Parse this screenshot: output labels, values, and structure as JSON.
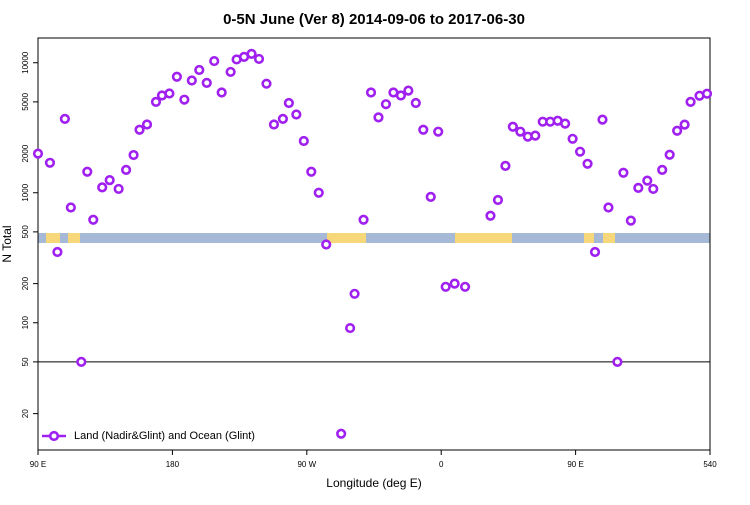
{
  "chart_data": {
    "type": "scatter",
    "title": "0-5N June (Ver 8)   2014-09-06 to 2017-06-30",
    "xlabel": "Longitude (deg E)",
    "ylabel": "N Total",
    "log_y": true,
    "legend": "lower left",
    "reference_line": 50,
    "xlim": [
      90,
      540
    ],
    "xticks": [
      {
        "value": 90,
        "label": "90 E"
      },
      180,
      {
        "value": 270,
        "label": "90 W"
      },
      {
        "value": 360,
        "label": "0"
      },
      {
        "value": 450,
        "label": "90 E"
      },
      540
    ],
    "ylim": [
      10.5,
      15500
    ],
    "yticks": [
      20,
      50,
      100,
      200,
      500,
      1000,
      2000,
      5000,
      10000
    ],
    "series": [
      {
        "name": "Land (Nadir&Glint) and Ocean (Glint)",
        "color": "#a020f0",
        "x": [
          90,
          98,
          103,
          108,
          112,
          119,
          123,
          127,
          133,
          138,
          144,
          149,
          154,
          158,
          163,
          169,
          173,
          178,
          183,
          188,
          193,
          198,
          203,
          208,
          213,
          219,
          223,
          228,
          233,
          238,
          243,
          248,
          254,
          258,
          263,
          268,
          273,
          278,
          283,
          293,
          299,
          302,
          308,
          313,
          318,
          323,
          328,
          333,
          338,
          343,
          348,
          353,
          358,
          363,
          369,
          376,
          393,
          398,
          403,
          408,
          413,
          418,
          423,
          428,
          433,
          438,
          443,
          448,
          453,
          458,
          463,
          468,
          472,
          478,
          482,
          487,
          492,
          498,
          502,
          508,
          513,
          518,
          523,
          527,
          533,
          538
        ],
        "values": [
          2000,
          1700,
          350,
          3700,
          770,
          50,
          1450,
          620,
          1100,
          1250,
          1070,
          1500,
          1950,
          3050,
          3350,
          5000,
          5600,
          5800,
          7800,
          5200,
          7300,
          8800,
          7000,
          10300,
          5900,
          8500,
          10600,
          11100,
          11700,
          10700,
          6900,
          3350,
          3700,
          4900,
          4000,
          2500,
          1450,
          1000,
          400,
          14,
          91,
          167,
          620,
          5900,
          3800,
          4800,
          5900,
          5600,
          6100,
          4900,
          3050,
          930,
          2950,
          189,
          200,
          189,
          665,
          880,
          1610,
          3220,
          2950,
          2700,
          2750,
          3520,
          3520,
          3580,
          3400,
          2600,
          2070,
          1670,
          350,
          3650,
          770,
          50,
          1425,
          610,
          1090,
          1240,
          1070,
          1500,
          1960,
          3000,
          3340,
          5000,
          5570,
          5780
        ]
      }
    ]
  }
}
